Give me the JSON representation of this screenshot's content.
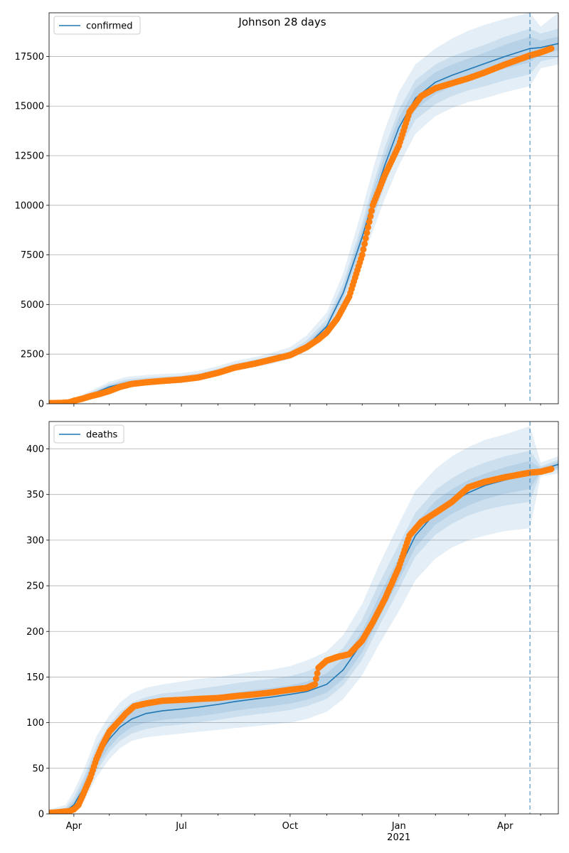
{
  "title": "Johnson 28 days",
  "colors": {
    "model": "#1f77b4",
    "observed": "#ff7f0e",
    "band": "#1f77b4",
    "grid": "#b0b0b0",
    "axis": "#000000"
  },
  "chart_data": [
    {
      "type": "line",
      "panel": "confirmed",
      "legend": [
        "confirmed"
      ],
      "legend_position": "upper left",
      "grid": "y",
      "x_range": [
        "2020-03-11",
        "2021-05-16"
      ],
      "ylim": [
        0,
        19700
      ],
      "yticks": [
        0,
        2500,
        5000,
        7500,
        10000,
        12500,
        15000,
        17500
      ],
      "ytick_labels": [
        "0",
        "2500",
        "5000",
        "7500",
        "10000",
        "12500",
        "15000",
        "17500"
      ],
      "forecast_start": "2021-04-22",
      "model": {
        "x": [
          "2020-03-11",
          "2020-03-25",
          "2020-04-01",
          "2020-04-15",
          "2020-05-01",
          "2020-05-15",
          "2020-06-01",
          "2020-06-15",
          "2020-07-01",
          "2020-07-15",
          "2020-08-01",
          "2020-08-15",
          "2020-09-01",
          "2020-09-15",
          "2020-10-01",
          "2020-10-15",
          "2020-11-01",
          "2020-11-15",
          "2020-12-01",
          "2020-12-10",
          "2020-12-20",
          "2021-01-01",
          "2021-01-15",
          "2021-02-01",
          "2021-02-15",
          "2021-03-01",
          "2021-03-15",
          "2021-04-01",
          "2021-04-22",
          "2021-05-01",
          "2021-05-16"
        ],
        "y": [
          20,
          50,
          150,
          450,
          850,
          1050,
          1150,
          1200,
          1250,
          1350,
          1600,
          1850,
          2050,
          2200,
          2450,
          2900,
          3900,
          5600,
          8400,
          10200,
          12000,
          13900,
          15400,
          16200,
          16550,
          16850,
          17150,
          17500,
          17900,
          17950,
          18150
        ]
      },
      "bands": [
        {
          "name": "outer",
          "lo": [
            0,
            0,
            80,
            300,
            650,
            850,
            950,
            1000,
            1050,
            1150,
            1400,
            1650,
            1850,
            2000,
            2250,
            2650,
            3500,
            4900,
            7200,
            8700,
            10300,
            12000,
            13600,
            14500,
            14900,
            15200,
            15400,
            15700,
            16000,
            16900,
            17100
          ],
          "hi": [
            100,
            120,
            250,
            650,
            1100,
            1350,
            1450,
            1500,
            1550,
            1650,
            1900,
            2150,
            2350,
            2550,
            2850,
            3450,
            4600,
            6600,
            9800,
            11800,
            13800,
            15700,
            17100,
            17900,
            18400,
            18800,
            19100,
            19400,
            19700,
            19000,
            19700
          ]
        },
        {
          "name": "middle",
          "lo": [
            0,
            10,
            100,
            350,
            720,
            920,
            1020,
            1070,
            1110,
            1210,
            1460,
            1710,
            1910,
            2060,
            2310,
            2740,
            3680,
            5200,
            7700,
            9300,
            11000,
            12800,
            14300,
            15100,
            15500,
            15800,
            16000,
            16300,
            16600,
            17250,
            17450
          ],
          "hi": [
            60,
            90,
            210,
            560,
            1000,
            1220,
            1320,
            1370,
            1420,
            1520,
            1770,
            2020,
            2220,
            2400,
            2650,
            3200,
            4250,
            6100,
            9100,
            11000,
            12900,
            14800,
            16300,
            17100,
            17500,
            17800,
            18100,
            18500,
            18900,
            18650,
            18900
          ]
        },
        {
          "name": "inner",
          "lo": [
            5,
            25,
            120,
            400,
            780,
            970,
            1070,
            1120,
            1170,
            1270,
            1520,
            1770,
            1970,
            2120,
            2370,
            2810,
            3780,
            5400,
            8000,
            9700,
            11500,
            13300,
            14800,
            15600,
            16000,
            16300,
            16600,
            16900,
            17200,
            17600,
            17800
          ],
          "hi": [
            40,
            75,
            180,
            510,
            930,
            1140,
            1240,
            1290,
            1340,
            1440,
            1690,
            1940,
            2140,
            2300,
            2550,
            3050,
            4050,
            5850,
            8800,
            10700,
            12500,
            14400,
            15900,
            16700,
            17100,
            17400,
            17700,
            18100,
            18500,
            18300,
            18500
          ]
        }
      ],
      "observed": {
        "x": [
          "2020-03-11",
          "2020-03-20",
          "2020-03-28",
          "2020-04-01",
          "2020-04-08",
          "2020-04-15",
          "2020-04-22",
          "2020-05-01",
          "2020-05-10",
          "2020-05-20",
          "2020-06-01",
          "2020-06-15",
          "2020-07-01",
          "2020-07-15",
          "2020-08-01",
          "2020-08-15",
          "2020-09-01",
          "2020-09-15",
          "2020-10-01",
          "2020-10-15",
          "2020-10-25",
          "2020-11-01",
          "2020-11-10",
          "2020-11-20",
          "2020-12-01",
          "2020-12-10",
          "2020-12-20",
          "2021-01-01",
          "2021-01-10",
          "2021-01-20",
          "2021-02-01",
          "2021-02-15",
          "2021-03-01",
          "2021-03-15",
          "2021-04-01",
          "2021-04-15",
          "2021-04-22",
          "2021-05-01",
          "2021-05-10"
        ],
        "y": [
          30,
          40,
          70,
          150,
          250,
          380,
          480,
          640,
          850,
          1000,
          1080,
          1150,
          1220,
          1320,
          1560,
          1820,
          2020,
          2220,
          2450,
          2850,
          3250,
          3600,
          4300,
          5400,
          7500,
          10000,
          11500,
          13000,
          14700,
          15500,
          15900,
          16150,
          16400,
          16700,
          17100,
          17400,
          17550,
          17700,
          17900
        ]
      }
    },
    {
      "type": "line",
      "panel": "deaths",
      "legend": [
        "deaths"
      ],
      "legend_position": "upper left",
      "grid": "y",
      "x_range": [
        "2020-03-11",
        "2021-05-16"
      ],
      "ylim": [
        0,
        430
      ],
      "yticks": [
        0,
        50,
        100,
        150,
        200,
        250,
        300,
        350,
        400
      ],
      "ytick_labels": [
        "0",
        "50",
        "100",
        "150",
        "200",
        "250",
        "300",
        "350",
        "400"
      ],
      "xtick_labels": [
        "Apr",
        "Jul",
        "Oct",
        "Jan",
        "Apr"
      ],
      "xtick_dates": [
        "2020-04-01",
        "2020-07-01",
        "2020-10-01",
        "2021-01-01",
        "2021-04-01"
      ],
      "x_year_label": "2021",
      "forecast_start": "2021-04-22",
      "model": {
        "x": [
          "2020-03-11",
          "2020-03-25",
          "2020-04-01",
          "2020-04-10",
          "2020-04-20",
          "2020-05-01",
          "2020-05-10",
          "2020-05-20",
          "2020-06-01",
          "2020-06-15",
          "2020-07-01",
          "2020-07-15",
          "2020-08-01",
          "2020-08-15",
          "2020-09-01",
          "2020-09-15",
          "2020-10-01",
          "2020-10-15",
          "2020-11-01",
          "2020-11-15",
          "2020-12-01",
          "2020-12-15",
          "2021-01-01",
          "2021-01-15",
          "2021-02-01",
          "2021-02-15",
          "2021-03-01",
          "2021-03-15",
          "2021-04-01",
          "2021-04-22",
          "2021-05-01",
          "2021-05-16"
        ],
        "y": [
          1,
          3,
          10,
          30,
          60,
          82,
          95,
          104,
          110,
          113,
          115,
          117,
          120,
          123,
          126,
          128,
          131,
          134,
          142,
          158,
          188,
          225,
          268,
          305,
          330,
          342,
          352,
          360,
          366,
          372,
          377,
          383
        ]
      },
      "bands": [
        {
          "name": "outer",
          "lo": [
            0,
            0,
            2,
            15,
            40,
            60,
            72,
            80,
            84,
            86,
            88,
            90,
            92,
            94,
            96,
            98,
            100,
            104,
            112,
            126,
            152,
            185,
            222,
            256,
            280,
            292,
            300,
            305,
            310,
            313,
            370,
            373
          ],
          "hi": [
            5,
            10,
            25,
            50,
            85,
            108,
            122,
            132,
            138,
            142,
            145,
            148,
            150,
            153,
            156,
            158,
            162,
            168,
            178,
            196,
            230,
            272,
            318,
            354,
            378,
            392,
            402,
            410,
            416,
            425,
            385,
            392
          ]
        },
        {
          "name": "middle",
          "lo": [
            0,
            1,
            5,
            20,
            47,
            68,
            80,
            88,
            93,
            96,
            98,
            100,
            103,
            106,
            109,
            111,
            114,
            118,
            126,
            141,
            169,
            205,
            246,
            282,
            306,
            318,
            327,
            333,
            338,
            342,
            374,
            377
          ],
          "hi": [
            3,
            7,
            18,
            42,
            75,
            98,
            112,
            122,
            128,
            132,
            134,
            137,
            140,
            143,
            146,
            148,
            151,
            156,
            165,
            182,
            213,
            252,
            295,
            330,
            355,
            368,
            378,
            385,
            392,
            398,
            381,
            388
          ]
        },
        {
          "name": "inner",
          "lo": [
            0,
            2,
            7,
            24,
            52,
            73,
            86,
            95,
            100,
            103,
            105,
            107,
            110,
            113,
            116,
            118,
            121,
            125,
            133,
            148,
            177,
            214,
            256,
            292,
            317,
            329,
            338,
            345,
            351,
            356,
            375,
            379
          ],
          "hi": [
            2,
            5,
            14,
            37,
            69,
            92,
            105,
            114,
            120,
            123,
            125,
            127,
            130,
            133,
            136,
            138,
            141,
            145,
            154,
            170,
            200,
            238,
            281,
            318,
            343,
            356,
            366,
            373,
            380,
            387,
            379,
            386
          ]
        }
      ],
      "observed": {
        "x": [
          "2020-03-11",
          "2020-03-20",
          "2020-03-28",
          "2020-04-01",
          "2020-04-05",
          "2020-04-10",
          "2020-04-15",
          "2020-04-20",
          "2020-04-25",
          "2020-05-01",
          "2020-05-08",
          "2020-05-15",
          "2020-05-22",
          "2020-06-01",
          "2020-06-15",
          "2020-07-01",
          "2020-07-15",
          "2020-08-01",
          "2020-08-15",
          "2020-09-01",
          "2020-09-15",
          "2020-10-01",
          "2020-10-15",
          "2020-10-22",
          "2020-10-25",
          "2020-11-01",
          "2020-11-10",
          "2020-11-20",
          "2020-12-01",
          "2020-12-10",
          "2020-12-20",
          "2021-01-01",
          "2021-01-10",
          "2021-01-20",
          "2021-02-01",
          "2021-02-15",
          "2021-03-01",
          "2021-03-15",
          "2021-04-01",
          "2021-04-22",
          "2021-05-01",
          "2021-05-10"
        ],
        "y": [
          1,
          2,
          3,
          5,
          10,
          25,
          40,
          60,
          75,
          90,
          100,
          110,
          118,
          121,
          124,
          125,
          126,
          127,
          129,
          131,
          133,
          136,
          138,
          142,
          160,
          168,
          172,
          175,
          190,
          210,
          235,
          270,
          305,
          320,
          330,
          342,
          358,
          364,
          369,
          374,
          375,
          378
        ]
      }
    }
  ]
}
